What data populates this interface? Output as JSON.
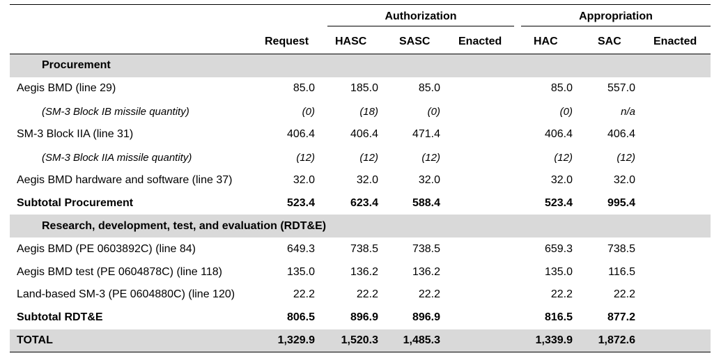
{
  "header": {
    "groups": {
      "authorization": "Authorization",
      "appropriation": "Appropriation"
    },
    "columns": [
      "Request",
      "HASC",
      "SASC",
      "Enacted",
      "HAC",
      "SAC",
      "Enacted"
    ]
  },
  "rows": [
    {
      "type": "section",
      "label": "Procurement"
    },
    {
      "type": "data",
      "label": "Aegis BMD (line 29)",
      "values": [
        "85.0",
        "185.0",
        "85.0",
        "",
        "85.0",
        "557.0",
        ""
      ]
    },
    {
      "type": "qty",
      "label": "(SM-3 Block IB missile quantity)",
      "values": [
        "(0)",
        "(18)",
        "(0)",
        "",
        "(0)",
        "n/a",
        ""
      ]
    },
    {
      "type": "data",
      "label": "SM-3 Block IIA (line 31)",
      "values": [
        "406.4",
        "406.4",
        "471.4",
        "",
        "406.4",
        "406.4",
        ""
      ]
    },
    {
      "type": "qty",
      "label": "(SM-3 Block IIA missile quantity)",
      "values": [
        "(12)",
        "(12)",
        "(12)",
        "",
        "(12)",
        "(12)",
        ""
      ]
    },
    {
      "type": "data",
      "label": "Aegis BMD hardware and software (line 37)",
      "values": [
        "32.0",
        "32.0",
        "32.0",
        "",
        "32.0",
        "32.0",
        ""
      ]
    },
    {
      "type": "subtotal",
      "label": "Subtotal Procurement",
      "values": [
        "523.4",
        "623.4",
        "588.4",
        "",
        "523.4",
        "995.4",
        ""
      ]
    },
    {
      "type": "section",
      "label": "Research, development, test, and evaluation (RDT&E)"
    },
    {
      "type": "data",
      "label": "Aegis BMD (PE 0603892C) (line 84)",
      "values": [
        "649.3",
        "738.5",
        "738.5",
        "",
        "659.3",
        "738.5",
        ""
      ]
    },
    {
      "type": "data",
      "label": "Aegis BMD test (PE 0604878C) (line 118)",
      "values": [
        "135.0",
        "136.2",
        "136.2",
        "",
        "135.0",
        "116.5",
        ""
      ]
    },
    {
      "type": "data",
      "label": "Land-based SM-3 (PE 0604880C) (line 120)",
      "values": [
        "22.2",
        "22.2",
        "22.2",
        "",
        "22.2",
        "22.2",
        ""
      ]
    },
    {
      "type": "subtotal",
      "label": "Subtotal RDT&E",
      "values": [
        "806.5",
        "896.9",
        "896.9",
        "",
        "816.5",
        "877.2",
        ""
      ]
    },
    {
      "type": "total",
      "label": "TOTAL",
      "values": [
        "1,329.9",
        "1,520.3",
        "1,485.3",
        "",
        "1,339.9",
        "1,872.6",
        ""
      ]
    }
  ]
}
